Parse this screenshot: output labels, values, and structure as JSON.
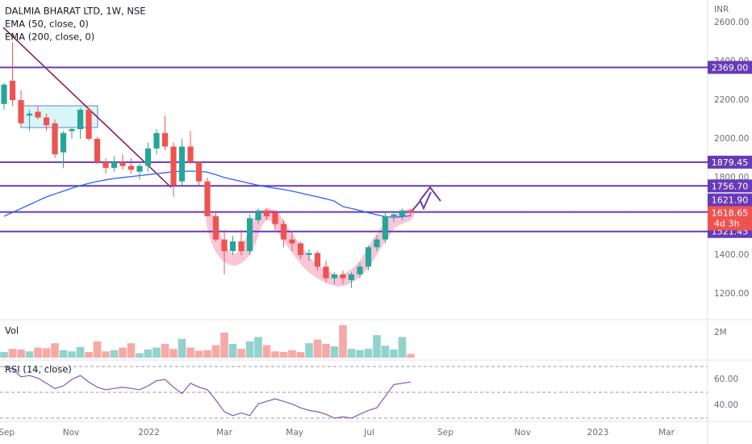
{
  "chart_data": {
    "type": "candlestick",
    "title": "DALMIA BHARAT LTD, 1W, NSE",
    "currency": "INR",
    "x": [
      0,
      1,
      2,
      3,
      4,
      5,
      6,
      7,
      8,
      9,
      10,
      11,
      12,
      13,
      14,
      15,
      16,
      17,
      18,
      19,
      20,
      21,
      22,
      23,
      24,
      25,
      26,
      27,
      28,
      29,
      30,
      31,
      32,
      33,
      34,
      35,
      36,
      37,
      38,
      39,
      40,
      41,
      42,
      43,
      44,
      45,
      46,
      47,
      48
    ],
    "open": [
      2180,
      2300,
      2200,
      2120,
      2140,
      2110,
      2080,
      1930,
      2040,
      2050,
      2150,
      2000,
      1880,
      1850,
      1880,
      1860,
      1830,
      1860,
      1950,
      2030,
      1960,
      1780,
      1960,
      1880,
      1780,
      1600,
      1480,
      1420,
      1470,
      1420,
      1580,
      1630,
      1620,
      1560,
      1480,
      1460,
      1400,
      1410,
      1340,
      1280,
      1300,
      1270,
      1300,
      1340,
      1440,
      1480,
      1600,
      1600,
      1630
    ],
    "high": [
      2290,
      2500,
      2250,
      2150,
      2170,
      2130,
      2100,
      2040,
      2060,
      2160,
      2160,
      2010,
      1900,
      1910,
      1920,
      1900,
      1870,
      1980,
      2050,
      2120,
      1980,
      2000,
      2040,
      1880,
      1800,
      1620,
      1530,
      1500,
      1530,
      1610,
      1640,
      1640,
      1630,
      1580,
      1520,
      1470,
      1430,
      1420,
      1370,
      1310,
      1320,
      1310,
      1360,
      1450,
      1500,
      1620,
      1620,
      1640,
      1640
    ],
    "low": [
      2150,
      2170,
      2060,
      2040,
      2100,
      2040,
      1900,
      1850,
      2000,
      2000,
      1990,
      1870,
      1820,
      1830,
      1840,
      1820,
      1790,
      1830,
      1920,
      1940,
      1700,
      1760,
      1870,
      1760,
      1600,
      1470,
      1300,
      1400,
      1400,
      1400,
      1560,
      1580,
      1520,
      1440,
      1420,
      1380,
      1370,
      1320,
      1260,
      1250,
      1250,
      1230,
      1280,
      1320,
      1420,
      1460,
      1570,
      1580,
      1600
    ],
    "close": [
      2280,
      2200,
      2080,
      2130,
      2110,
      2070,
      1920,
      2030,
      2050,
      2150,
      2000,
      1880,
      1850,
      1880,
      1860,
      1840,
      1860,
      1950,
      2030,
      1960,
      1760,
      1960,
      1880,
      1780,
      1600,
      1480,
      1420,
      1470,
      1420,
      1590,
      1630,
      1600,
      1560,
      1480,
      1460,
      1400,
      1410,
      1340,
      1280,
      1300,
      1280,
      1300,
      1340,
      1440,
      1480,
      1600,
      1610,
      1630,
      1618.65
    ],
    "up_color": "#26a69a",
    "down_color": "#ef5350",
    "xlim": [
      -0.48,
      83.05
    ],
    "xticks": [
      {
        "value": 0.29,
        "label": "Sep"
      },
      {
        "value": 7.9,
        "label": "Nov"
      },
      {
        "value": 17.1,
        "label": "2022"
      },
      {
        "value": 26,
        "label": "Mar"
      },
      {
        "value": 34.3,
        "label": "May"
      },
      {
        "value": 43.1,
        "label": "Jul"
      },
      {
        "value": 52.1,
        "label": "Sep"
      },
      {
        "value": 61.2,
        "label": "Nov"
      },
      {
        "value": 70.1,
        "label": "2023"
      },
      {
        "value": 78.2,
        "label": "Mar"
      }
    ],
    "ylim": [
      1070,
      2717
    ],
    "yticks": [
      {
        "value": 2600,
        "label": "2600.00"
      },
      {
        "value": 2400,
        "label": "2400.00"
      },
      {
        "value": 2200,
        "label": "2200.00"
      },
      {
        "value": 2000,
        "label": "2000.00"
      },
      {
        "value": 1800,
        "label": "1800.00"
      },
      {
        "value": 1400,
        "label": "1400.00"
      },
      {
        "value": 1200,
        "label": "1200.00"
      }
    ],
    "levels": [
      {
        "value": 2369,
        "label": "2369.00"
      },
      {
        "value": 1879.45,
        "label": "1879.45"
      },
      {
        "value": 1756.7,
        "label": "1756.70"
      },
      {
        "value": 1621.9,
        "label": "1621.90"
      },
      {
        "value": 1521.45,
        "label": "1521.45"
      }
    ],
    "level_color": "#673ab7",
    "last_price": {
      "value": 1618.65,
      "label": "1618.65",
      "countdown": "4d 3h"
    },
    "series": [
      {
        "name": "EMA (50, close, 0)",
        "color": "#2962ff",
        "values": [
          1600,
          1620,
          1640,
          1660,
          1680,
          1700,
          1715,
          1730,
          1745,
          1758,
          1770,
          1780,
          1788,
          1795,
          1800,
          1805,
          1810,
          1815,
          1820,
          1825,
          1830,
          1832,
          1833,
          1832,
          1828,
          1815,
          1800,
          1790,
          1780,
          1770,
          1760,
          1752,
          1745,
          1738,
          1730,
          1720,
          1710,
          1700,
          1690,
          1678,
          1650,
          1640,
          1630,
          1618,
          1608,
          1598,
          1595,
          1598,
          1603
        ]
      },
      {
        "name": "EMA (200, close, 0)"
      }
    ],
    "volume": {
      "label": "Vol",
      "ylim": [
        0,
        2970000
      ],
      "yticks": [
        {
          "value": 2000000,
          "label": "2M"
        }
      ],
      "values": [
        450000,
        700000,
        650000,
        500000,
        800000,
        750000,
        1150000,
        600000,
        500000,
        850000,
        450000,
        1300000,
        500000,
        600000,
        800000,
        1150000,
        350000,
        650000,
        800000,
        1100000,
        700000,
        1500000,
        800000,
        550000,
        600000,
        1000000,
        2000000,
        1100000,
        700000,
        1300000,
        1650000,
        1000000,
        500000,
        450000,
        600000,
        450000,
        1150000,
        1450000,
        1100000,
        900000,
        2600000,
        700000,
        600000,
        700000,
        1800000,
        950000,
        650000,
        1650000,
        300000
      ]
    },
    "rsi": {
      "label": "RSI (14, close)",
      "color": "#7e57c2",
      "ylim": [
        28.75,
        72.5
      ],
      "yticks": [
        {
          "value": 60,
          "label": "60.00"
        },
        {
          "value": 40,
          "label": "40.00"
        }
      ],
      "bands": [
        70,
        50,
        30
      ],
      "values": [
        70,
        68,
        62,
        63,
        61,
        57,
        53,
        55,
        60,
        63,
        58,
        54,
        52,
        53,
        54,
        53,
        52,
        55,
        59,
        60,
        54,
        49,
        57,
        54,
        52,
        44,
        35,
        32,
        34,
        32,
        41,
        43,
        45,
        43,
        41,
        38,
        36,
        35,
        33,
        30,
        31,
        30,
        33,
        36,
        38,
        47,
        56,
        57,
        58
      ]
    }
  }
}
